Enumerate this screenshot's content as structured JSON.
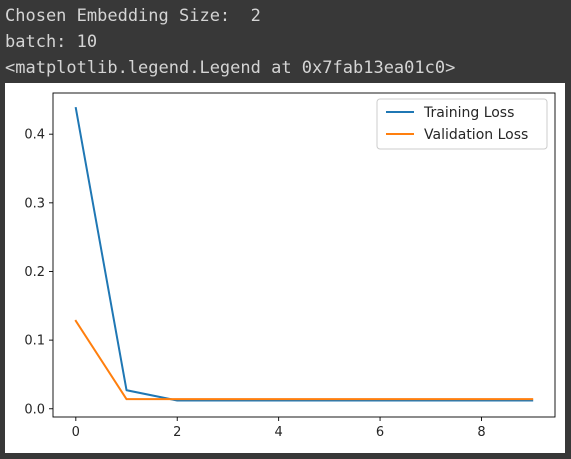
{
  "output": {
    "lines": [
      "Chosen Embedding Size:  2",
      "batch: 10",
      "<matplotlib.legend.Legend at 0x7fab13ea01c0>"
    ]
  },
  "chart_data": {
    "type": "line",
    "title": "",
    "xlabel": "",
    "ylabel": "",
    "xlim": [
      -0.45,
      9.45
    ],
    "ylim": [
      -0.012,
      0.46
    ],
    "xticks": [
      0,
      2,
      4,
      6,
      8
    ],
    "yticks": [
      0.0,
      0.1,
      0.2,
      0.3,
      0.4
    ],
    "xtick_labels": [
      "0",
      "2",
      "4",
      "6",
      "8"
    ],
    "ytick_labels": [
      "0.0",
      "0.1",
      "0.2",
      "0.3",
      "0.4"
    ],
    "grid": false,
    "legend_position": "top-right",
    "x": [
      0,
      1,
      2,
      3,
      4,
      5,
      6,
      7,
      8,
      9
    ],
    "series": [
      {
        "name": "Training Loss",
        "color": "#1f77b4",
        "values": [
          0.438,
          0.027,
          0.012,
          0.012,
          0.012,
          0.012,
          0.012,
          0.012,
          0.012,
          0.012
        ]
      },
      {
        "name": "Validation Loss",
        "color": "#ff7f0e",
        "values": [
          0.128,
          0.014,
          0.014,
          0.014,
          0.014,
          0.014,
          0.014,
          0.014,
          0.014,
          0.014
        ]
      }
    ]
  }
}
